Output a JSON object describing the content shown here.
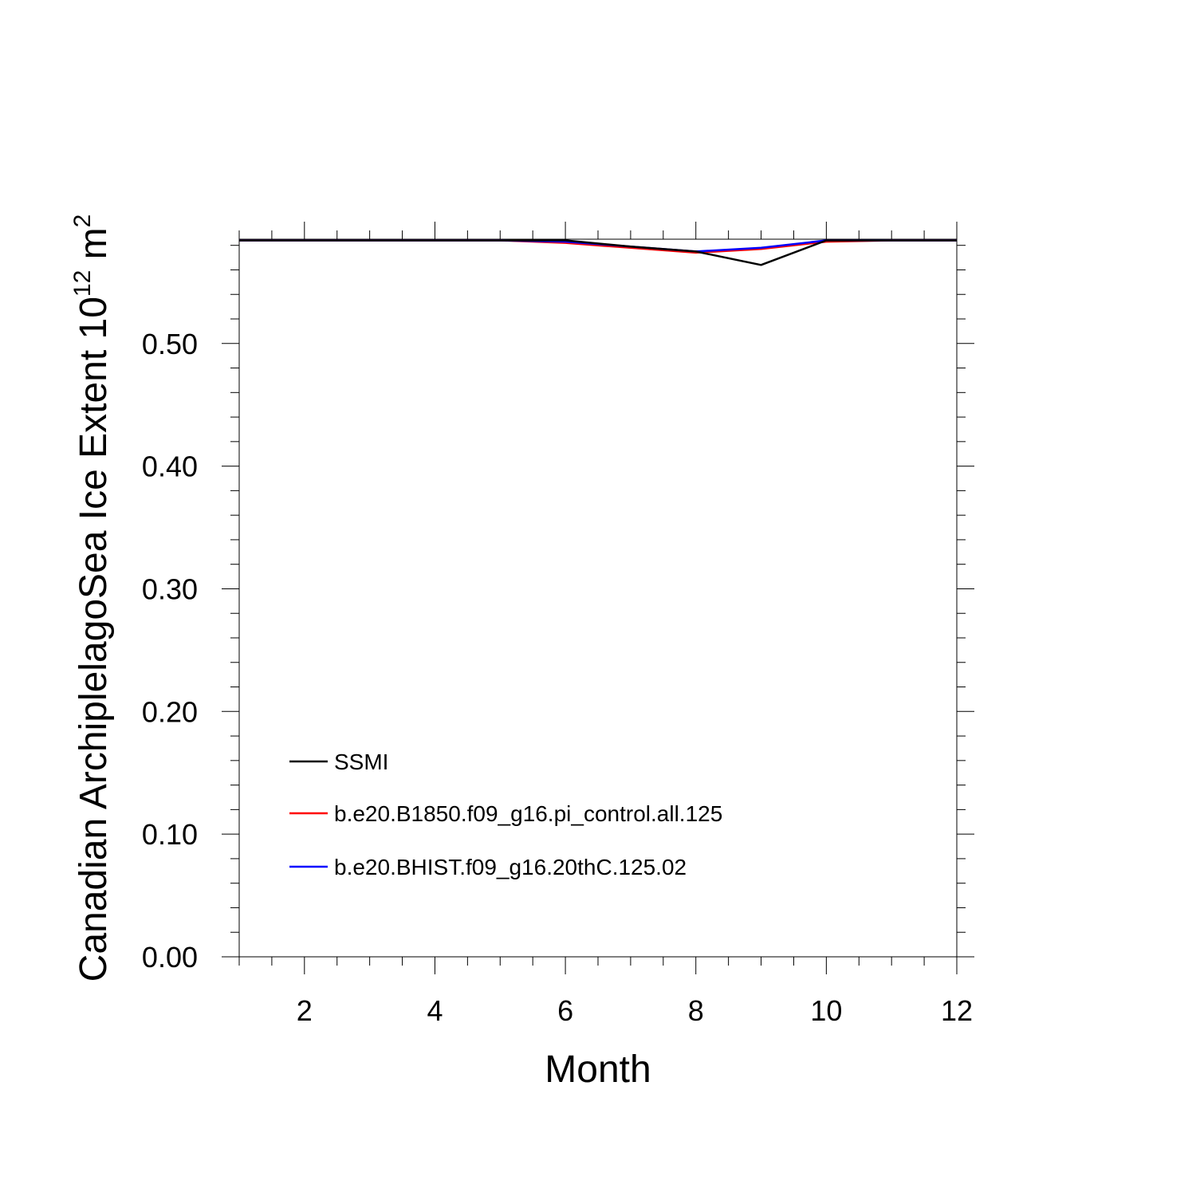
{
  "chart_data": {
    "type": "line",
    "xlabel": "Month",
    "ylabel_parts": [
      "Canadian ArchiplelagoSea Ice Extent 10",
      "12",
      " m",
      "2"
    ],
    "xlim": [
      1,
      12
    ],
    "ylim": [
      0,
      0.585
    ],
    "x_major_ticks": [
      2,
      4,
      6,
      8,
      10,
      12
    ],
    "x_tick_labels": [
      "2",
      "4",
      "6",
      "8",
      "10",
      "12"
    ],
    "y_major_ticks": [
      0,
      0.1,
      0.2,
      0.3,
      0.4,
      0.5
    ],
    "y_tick_labels": [
      "0.00",
      "0.10",
      "0.20",
      "0.30",
      "0.40",
      "0.50"
    ],
    "x": [
      1,
      2,
      3,
      4,
      5,
      6,
      7,
      8,
      9,
      10,
      11,
      12
    ],
    "series": [
      {
        "name": "SSMI",
        "color": "#000000",
        "values": [
          0.584,
          0.584,
          0.584,
          0.584,
          0.584,
          0.584,
          0.579,
          0.575,
          0.564,
          0.584,
          0.584,
          0.584
        ]
      },
      {
        "name": "b.e20.B1850.f09_g16.pi_control.all.125",
        "color": "#ff0000",
        "values": [
          0.584,
          0.584,
          0.584,
          0.584,
          0.584,
          0.582,
          0.578,
          0.574,
          0.577,
          0.583,
          0.584,
          0.584
        ]
      },
      {
        "name": "b.e20.BHIST.f09_g16.20thC.125.02",
        "color": "#0000ff",
        "values": [
          0.584,
          0.584,
          0.584,
          0.584,
          0.584,
          0.583,
          0.579,
          0.575,
          0.578,
          0.584,
          0.584,
          0.584
        ]
      }
    ],
    "legend_position": "lower-left",
    "grid": false
  }
}
